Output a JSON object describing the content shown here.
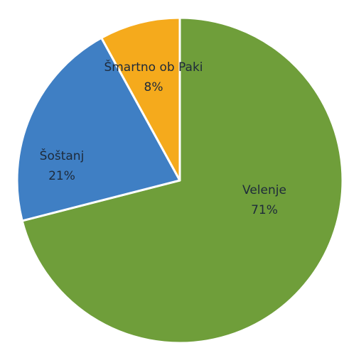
{
  "chart_data": {
    "type": "pie",
    "categories": [
      "Velenje",
      "Šoštanj",
      "Šmartno ob Paki"
    ],
    "values": [
      71,
      21,
      8
    ],
    "value_labels": [
      "71%",
      "21%",
      "8%"
    ],
    "colors": [
      "#6f9e3a",
      "#3f7fc4",
      "#f5aa1c"
    ],
    "start_angle": 0,
    "direction": "clockwise"
  }
}
